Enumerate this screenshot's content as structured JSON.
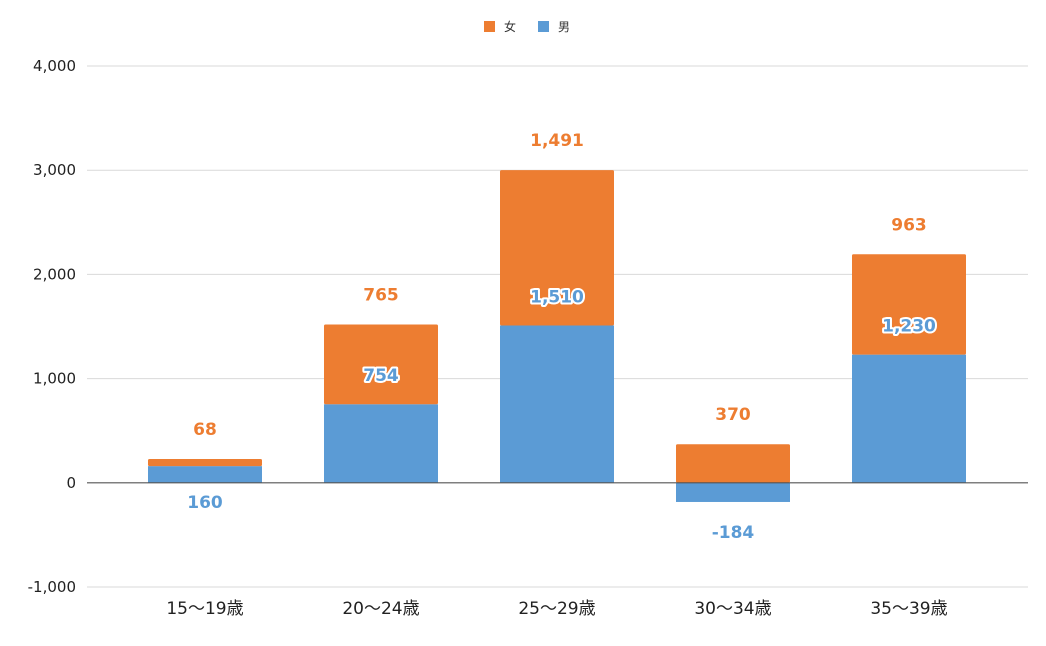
{
  "chart_data": {
    "type": "bar",
    "stacked": true,
    "categories": [
      "15〜19歳",
      "20〜24歳",
      "25〜29歳",
      "30〜34歳",
      "35〜39歳"
    ],
    "series": [
      {
        "name": "男",
        "color": "#5b9bd5",
        "values": [
          160,
          754,
          1510,
          -184,
          1230
        ]
      },
      {
        "name": "女",
        "color": "#ed7d31",
        "values": [
          68,
          765,
          1491,
          370,
          963
        ]
      }
    ],
    "data_labels": {
      "男": [
        "160",
        "754",
        "1,510",
        "-184",
        "1,230"
      ],
      "女": [
        "68",
        "765",
        "1,491",
        "370",
        "963"
      ]
    },
    "y_ticks": [
      -1000,
      0,
      1000,
      2000,
      3000,
      4000
    ],
    "y_tick_labels": [
      "-1,000",
      "0",
      "1,000",
      "2,000",
      "3,000",
      "4,000"
    ],
    "ylim": [
      -1000,
      4000
    ],
    "grid": true,
    "legend_placement": "top-center",
    "legend_order": [
      "女",
      "男"
    ]
  }
}
